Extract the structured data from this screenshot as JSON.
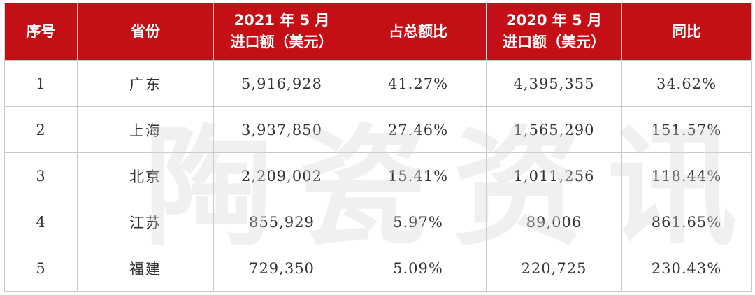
{
  "watermark": "陶瓷资讯",
  "table": {
    "headers": [
      {
        "lines": [
          "序号"
        ]
      },
      {
        "lines": [
          "省份"
        ]
      },
      {
        "lines": [
          "2021 年 5 月",
          "进口额（美元）"
        ]
      },
      {
        "lines": [
          "占总额比"
        ]
      },
      {
        "lines": [
          "2020 年 5 月",
          "进口额（美元）"
        ]
      },
      {
        "lines": [
          "同比"
        ]
      }
    ],
    "rows": [
      [
        "1",
        "广东",
        "5,916,928",
        "41.27%",
        "4,395,355",
        "34.62%"
      ],
      [
        "2",
        "上海",
        "3,937,850",
        "27.46%",
        "1,565,290",
        "151.57%"
      ],
      [
        "3",
        "北京",
        "2,209,002",
        "15.41%",
        "1,011,256",
        "118.44%"
      ],
      [
        "4",
        "江苏",
        "855,929",
        "5.97%",
        "89,006",
        "861.65%"
      ],
      [
        "5",
        "福建",
        "729,350",
        "5.09%",
        "220,725",
        "230.43%"
      ]
    ]
  },
  "colors": {
    "header_bg": "#c40f16",
    "header_text": "#ffffff",
    "body_text": "#333333",
    "border": "#c9c9c9"
  }
}
